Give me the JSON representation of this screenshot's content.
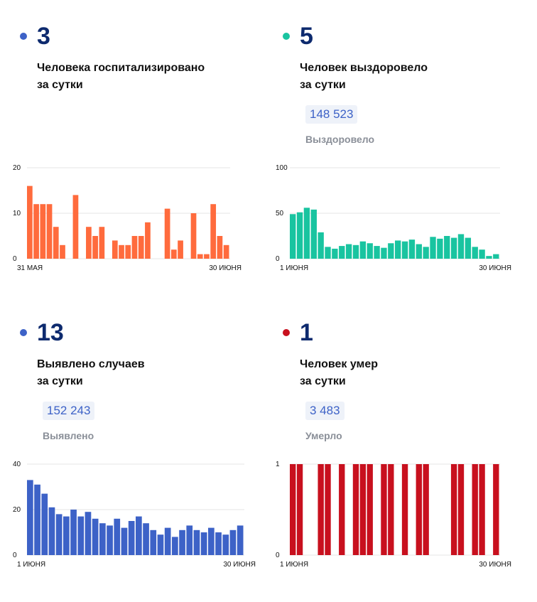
{
  "panels": [
    {
      "id": "hospitalized",
      "color": "#3d62c7",
      "number": "3",
      "label_line1": "Человека госпитализировано",
      "label_line2": "за сутки",
      "total": null,
      "total_label": null
    },
    {
      "id": "recovered",
      "color": "#19c4a0",
      "number": "5",
      "label_line1": "Человек выздоровело",
      "label_line2": "за сутки",
      "total": "148 523",
      "total_label": "Выздоровело"
    },
    {
      "id": "cases",
      "color": "#3d62c7",
      "number": "13",
      "label_line1": "Выявлено случаев",
      "label_line2": "за сутки",
      "total": "152 243",
      "total_label": "Выявлено"
    },
    {
      "id": "deaths",
      "color": "#c8101e",
      "number": "1",
      "label_line1": "Человек умер",
      "label_line2": "за сутки",
      "total": "3 483",
      "total_label": "Умерло"
    }
  ],
  "chart_data": [
    {
      "type": "bar",
      "id": "hospitalized-chart",
      "color": "#ff6b3d",
      "ylim": [
        0,
        20
      ],
      "yticks": [
        0,
        10,
        20
      ],
      "x_start_label": "31 МАЯ",
      "x_end_label": "30 ИЮНЯ",
      "values": [
        16,
        12,
        12,
        12,
        7,
        3,
        0,
        14,
        0,
        7,
        5,
        7,
        0,
        4,
        3,
        3,
        5,
        5,
        8,
        0,
        0,
        11,
        2,
        4,
        0,
        10,
        1,
        1,
        12,
        5,
        3
      ]
    },
    {
      "type": "bar",
      "id": "recovered-chart",
      "color": "#19c4a0",
      "ylim": [
        0,
        100
      ],
      "yticks": [
        0,
        50,
        100
      ],
      "x_start_label": "1 ИЮНЯ",
      "x_end_label": "30 ИЮНЯ",
      "values": [
        49,
        51,
        56,
        54,
        29,
        13,
        11,
        14,
        16,
        15,
        19,
        17,
        14,
        12,
        17,
        20,
        19,
        21,
        16,
        13,
        24,
        22,
        25,
        23,
        27,
        23,
        13,
        10,
        3,
        5
      ]
    },
    {
      "type": "bar",
      "id": "cases-chart",
      "color": "#3d62c7",
      "ylim": [
        0,
        40
      ],
      "yticks": [
        0,
        20,
        40
      ],
      "x_start_label": "1 ИЮНЯ",
      "x_end_label": "30 ИЮНЯ",
      "values": [
        33,
        31,
        27,
        21,
        18,
        17,
        20,
        17,
        19,
        16,
        14,
        13,
        16,
        12,
        15,
        17,
        14,
        11,
        9,
        12,
        8,
        11,
        13,
        11,
        10,
        12,
        10,
        9,
        11,
        13
      ]
    },
    {
      "type": "bar",
      "id": "deaths-chart",
      "color": "#c8101e",
      "ylim": [
        0,
        1
      ],
      "yticks": [
        0,
        1
      ],
      "x_start_label": "1 ИЮНЯ",
      "x_end_label": "30 ИЮНЯ",
      "values": [
        1,
        1,
        0,
        0,
        1,
        1,
        0,
        1,
        0,
        1,
        1,
        1,
        0,
        1,
        1,
        0,
        1,
        0,
        1,
        1,
        0,
        0,
        0,
        1,
        1,
        0,
        1,
        1,
        0,
        1
      ]
    }
  ]
}
